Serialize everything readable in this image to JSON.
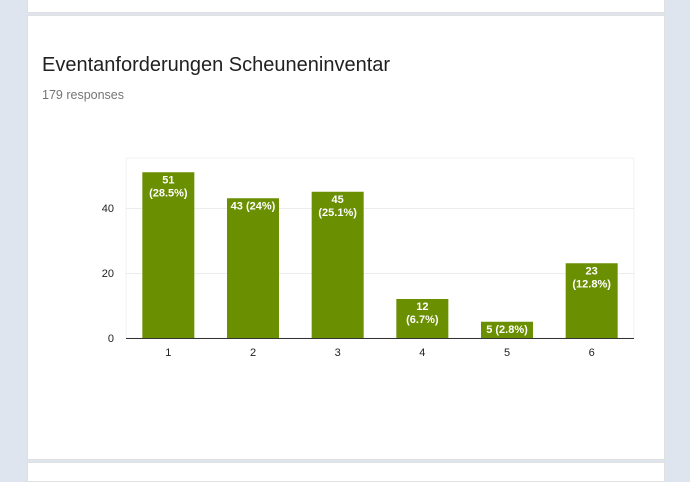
{
  "chart_data": {
    "type": "bar",
    "title": "Eventanforderungen Scheuneninventar",
    "subtitle": "179 responses",
    "categories": [
      "1",
      "2",
      "3",
      "4",
      "5",
      "6"
    ],
    "values": [
      51,
      43,
      45,
      12,
      5,
      23
    ],
    "data_labels": [
      [
        "51",
        "(28.5%)"
      ],
      [
        "43 (24%)"
      ],
      [
        "45",
        "(25.1%)"
      ],
      [
        "12",
        "(6.7%)"
      ],
      [
        "5 (2.8%)"
      ],
      [
        "23",
        "(12.8%)"
      ]
    ],
    "y_ticks": [
      "0",
      "20",
      "40"
    ],
    "y_tick_values": [
      0,
      20,
      40
    ],
    "ylim": [
      0,
      55
    ],
    "bar_color": "#6a8f00",
    "grid": true,
    "legend": "none"
  }
}
